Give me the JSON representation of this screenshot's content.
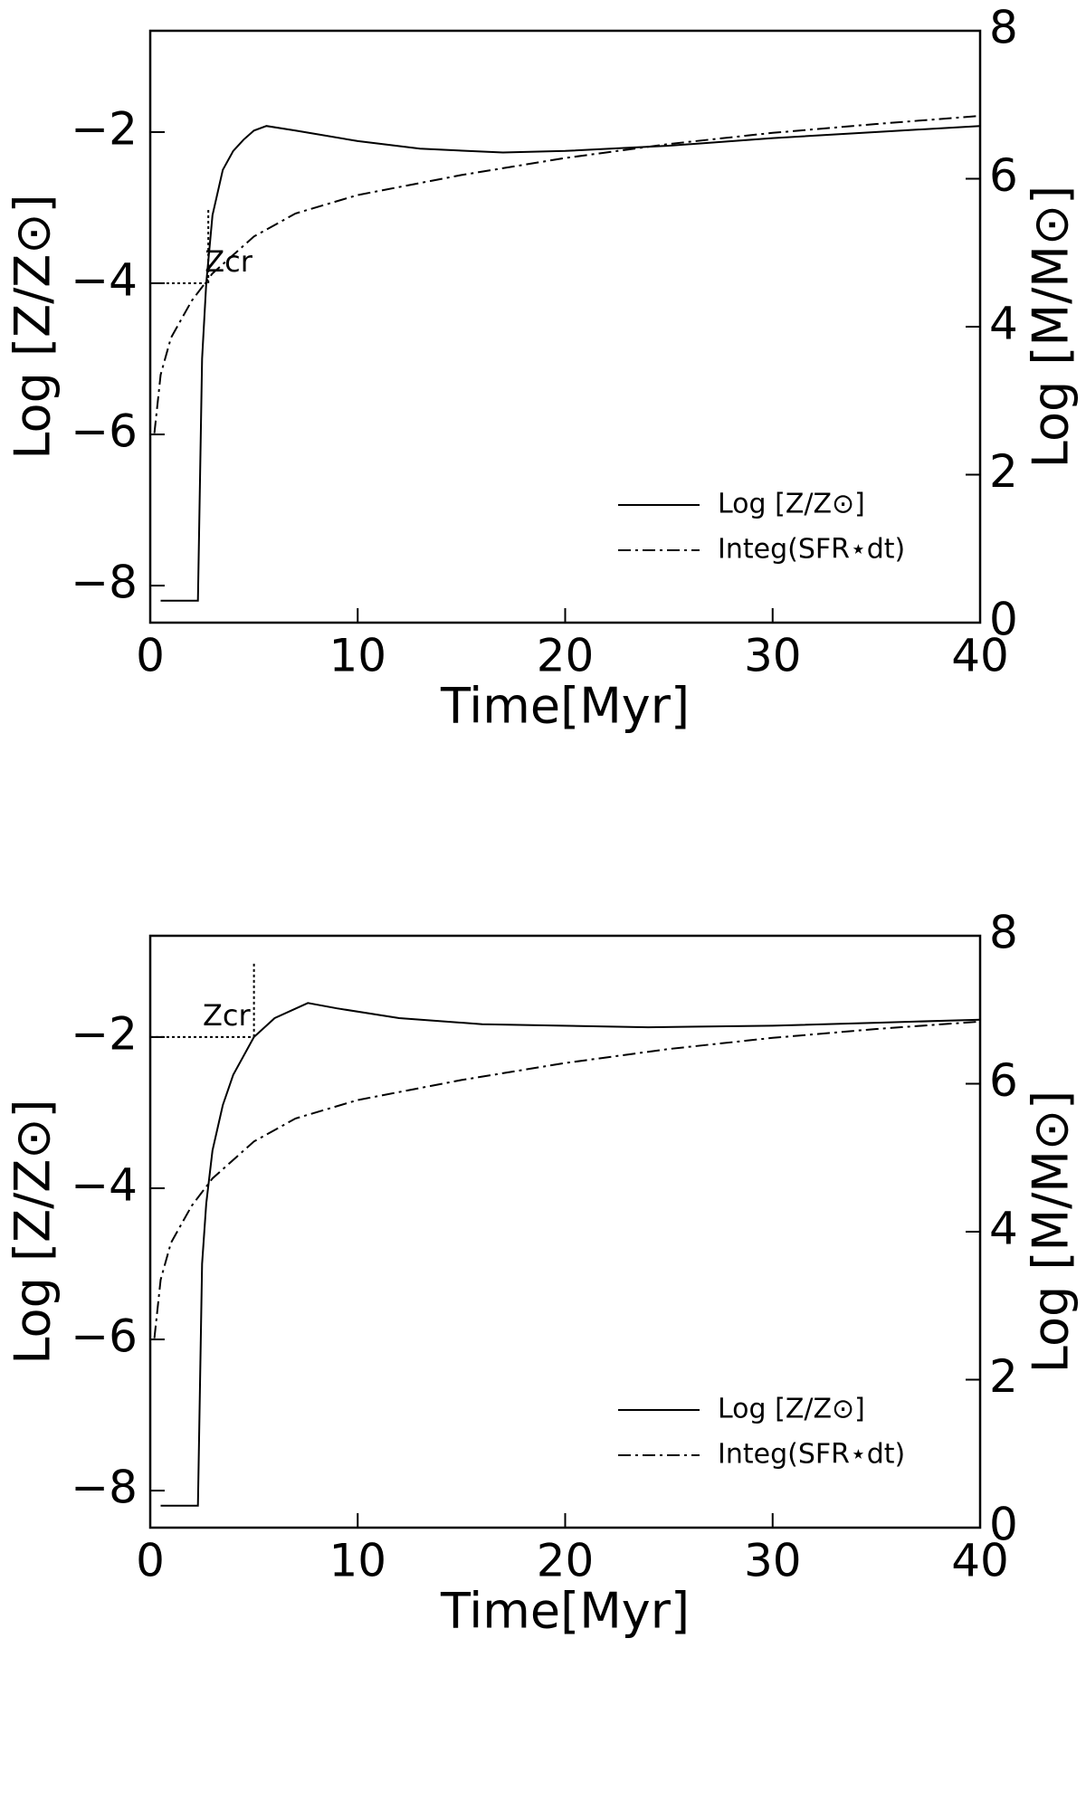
{
  "chart_data": [
    {
      "type": "line",
      "xlabel": "Time[Myr]",
      "ylabel": "Log [Z/Z⊙]",
      "y2label": "Log [M/M⊙]",
      "xlim": [
        0,
        40
      ],
      "xticks": [
        0,
        10,
        20,
        30,
        40
      ],
      "ylim": [
        -8.49,
        -0.66
      ],
      "yticks": [
        {
          "value": -8,
          "label": "−8"
        },
        {
          "value": -6,
          "label": "−6"
        },
        {
          "value": -4,
          "label": "−4"
        },
        {
          "value": -2,
          "label": "−2"
        }
      ],
      "y2lim": [
        0,
        8
      ],
      "y2ticks": [
        0,
        2,
        4,
        6,
        8
      ],
      "legend": "lower right",
      "series": [
        {
          "name": "Log [Z/Z⊙]",
          "color": "#000000",
          "style": "solid",
          "x": [
            0.5,
            2.3,
            2.5,
            2.7,
            3,
            3.5,
            4,
            4.5,
            5,
            5.6,
            7,
            10,
            13,
            17,
            20,
            25,
            30,
            35,
            40
          ],
          "values": [
            -8.2,
            -8.2,
            -5,
            -4,
            -3.1,
            -2.5,
            -2.25,
            -2.1,
            -1.98,
            -1.92,
            -1.98,
            -2.12,
            -2.22,
            -2.27,
            -2.25,
            -2.18,
            -2.08,
            -2.0,
            -1.92
          ]
        },
        {
          "name": "Integ(SFR⋆dt)",
          "color": "#000000",
          "style": "dashdot",
          "axis": "y2",
          "x": [
            0.2,
            0.5,
            1,
            2,
            3,
            5,
            7,
            10,
            15,
            20,
            25,
            30,
            35,
            40
          ],
          "values": [
            2.56,
            3.35,
            3.85,
            4.35,
            4.72,
            5.22,
            5.53,
            5.78,
            6.05,
            6.28,
            6.47,
            6.62,
            6.74,
            6.85
          ]
        }
      ],
      "zcr": {
        "label": "Zcr",
        "x": 2.8,
        "y": -4,
        "y_top": -3
      }
    },
    {
      "type": "line",
      "xlabel": "Time[Myr]",
      "ylabel": "Log [Z/Z⊙]",
      "y2label": "Log [M/M⊙]",
      "xlim": [
        0,
        40
      ],
      "xticks": [
        0,
        10,
        20,
        30,
        40
      ],
      "ylim": [
        -8.49,
        -0.66
      ],
      "yticks": [
        {
          "value": -8,
          "label": "−8"
        },
        {
          "value": -6,
          "label": "−6"
        },
        {
          "value": -4,
          "label": "−4"
        },
        {
          "value": -2,
          "label": "−2"
        }
      ],
      "y2lim": [
        0,
        8
      ],
      "y2ticks": [
        0,
        2,
        4,
        6,
        8
      ],
      "legend": "lower right",
      "series": [
        {
          "name": "Log [Z/Z⊙]",
          "color": "#000000",
          "style": "solid",
          "x": [
            0.5,
            2.3,
            2.5,
            2.7,
            3,
            3.5,
            4,
            5,
            6,
            7.6,
            9,
            12,
            16,
            24,
            30,
            35,
            40
          ],
          "values": [
            -8.2,
            -8.2,
            -5,
            -4.2,
            -3.5,
            -2.9,
            -2.5,
            -2.0,
            -1.75,
            -1.55,
            -1.62,
            -1.75,
            -1.83,
            -1.87,
            -1.85,
            -1.81,
            -1.77
          ]
        },
        {
          "name": "Integ(SFR⋆dt)",
          "color": "#000000",
          "style": "dashdot",
          "axis": "y2",
          "x": [
            0.2,
            0.5,
            1,
            2,
            3,
            5,
            7,
            10,
            15,
            20,
            25,
            30,
            35,
            40
          ],
          "values": [
            2.56,
            3.35,
            3.85,
            4.35,
            4.72,
            5.22,
            5.53,
            5.78,
            6.05,
            6.28,
            6.47,
            6.62,
            6.74,
            6.84
          ]
        }
      ],
      "zcr": {
        "label": "Zcr",
        "x": 5,
        "y": -2,
        "y_top": -1
      }
    }
  ]
}
